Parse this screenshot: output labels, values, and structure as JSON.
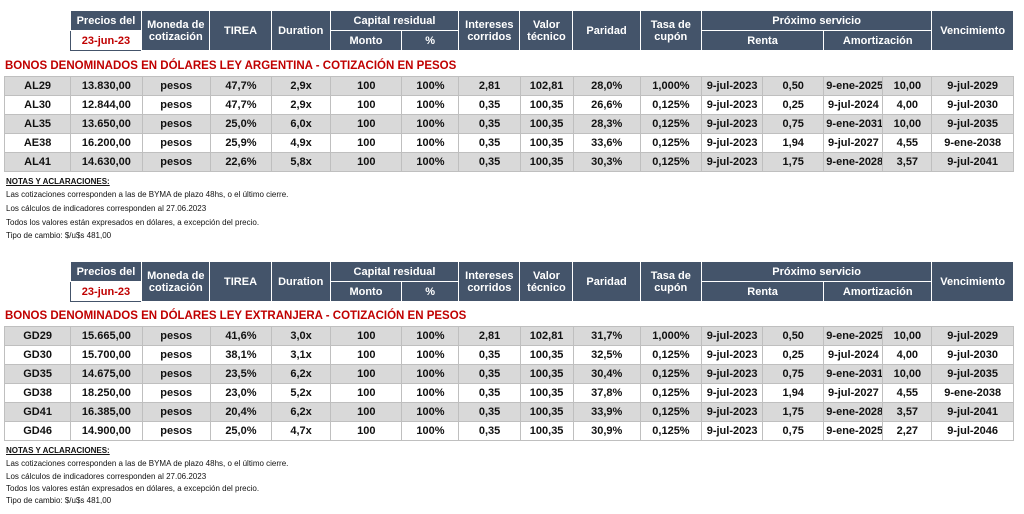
{
  "headers": {
    "precios_del": "Precios del",
    "date": "23-jun-23",
    "moneda_line1": "Moneda de",
    "moneda_line2": "cotización",
    "tirea": "TIREA",
    "duration": "Duration",
    "capital_residual": "Capital residual",
    "monto": "Monto",
    "pct": "%",
    "intereses_line1": "Intereses",
    "intereses_line2": "corridos",
    "valor_line1": "Valor",
    "valor_line2": "técnico",
    "paridad": "Paridad",
    "tasa_line1": "Tasa de",
    "tasa_line2": "cupón",
    "proximo_servicio": "Próximo servicio",
    "renta": "Renta",
    "amortizacion": "Amortización",
    "vencimiento": "Vencimiento"
  },
  "sections": [
    {
      "title": "BONOS DENOMINADOS EN DÓLARES LEY ARGENTINA    -    COTIZACIÓN EN PESOS",
      "rows": [
        [
          "AL29",
          "13.830,00",
          "pesos",
          "47,7%",
          "2,9x",
          "100",
          "100%",
          "2,81",
          "102,81",
          "28,0%",
          "1,000%",
          "9-jul-2023",
          "0,50",
          "9-ene-2025",
          "10,00",
          "9-jul-2029"
        ],
        [
          "AL30",
          "12.844,00",
          "pesos",
          "47,7%",
          "2,9x",
          "100",
          "100%",
          "0,35",
          "100,35",
          "26,6%",
          "0,125%",
          "9-jul-2023",
          "0,25",
          "9-jul-2024",
          "4,00",
          "9-jul-2030"
        ],
        [
          "AL35",
          "13.650,00",
          "pesos",
          "25,0%",
          "6,0x",
          "100",
          "100%",
          "0,35",
          "100,35",
          "28,3%",
          "0,125%",
          "9-jul-2023",
          "0,75",
          "9-ene-2031",
          "10,00",
          "9-jul-2035"
        ],
        [
          "AE38",
          "16.200,00",
          "pesos",
          "25,9%",
          "4,9x",
          "100",
          "100%",
          "0,35",
          "100,35",
          "33,6%",
          "0,125%",
          "9-jul-2023",
          "1,94",
          "9-jul-2027",
          "4,55",
          "9-ene-2038"
        ],
        [
          "AL41",
          "14.630,00",
          "pesos",
          "22,6%",
          "5,8x",
          "100",
          "100%",
          "0,35",
          "100,35",
          "30,3%",
          "0,125%",
          "9-jul-2023",
          "1,75",
          "9-ene-2028",
          "3,57",
          "9-jul-2041"
        ]
      ],
      "notes": {
        "title": "NOTAS Y ACLARACIONES:",
        "lines": [
          "Las cotizaciones corresponden a las de BYMA de plazo 48hs, o el último cierre.",
          "Los cálculos de indicadores corresponden al 27.06.2023",
          "Todos los valores están expresados en dólares, a excepción del precio.",
          "Tipo de cambio:  $/u$s 481,00"
        ]
      }
    },
    {
      "title": "BONOS DENOMINADOS EN DÓLARES LEY EXTRANJERA    -    COTIZACIÓN EN PESOS",
      "rows": [
        [
          "GD29",
          "15.665,00",
          "pesos",
          "41,6%",
          "3,0x",
          "100",
          "100%",
          "2,81",
          "102,81",
          "31,7%",
          "1,000%",
          "9-jul-2023",
          "0,50",
          "9-ene-2025",
          "10,00",
          "9-jul-2029"
        ],
        [
          "GD30",
          "15.700,00",
          "pesos",
          "38,1%",
          "3,1x",
          "100",
          "100%",
          "0,35",
          "100,35",
          "32,5%",
          "0,125%",
          "9-jul-2023",
          "0,25",
          "9-jul-2024",
          "4,00",
          "9-jul-2030"
        ],
        [
          "GD35",
          "14.675,00",
          "pesos",
          "23,5%",
          "6,2x",
          "100",
          "100%",
          "0,35",
          "100,35",
          "30,4%",
          "0,125%",
          "9-jul-2023",
          "0,75",
          "9-ene-2031",
          "10,00",
          "9-jul-2035"
        ],
        [
          "GD38",
          "18.250,00",
          "pesos",
          "23,0%",
          "5,2x",
          "100",
          "100%",
          "0,35",
          "100,35",
          "37,8%",
          "0,125%",
          "9-jul-2023",
          "1,94",
          "9-jul-2027",
          "4,55",
          "9-ene-2038"
        ],
        [
          "GD41",
          "16.385,00",
          "pesos",
          "20,4%",
          "6,2x",
          "100",
          "100%",
          "0,35",
          "100,35",
          "33,9%",
          "0,125%",
          "9-jul-2023",
          "1,75",
          "9-ene-2028",
          "3,57",
          "9-jul-2041"
        ],
        [
          "GD46",
          "14.900,00",
          "pesos",
          "25,0%",
          "4,7x",
          "100",
          "100%",
          "0,35",
          "100,35",
          "30,9%",
          "0,125%",
          "9-jul-2023",
          "0,75",
          "9-ene-2025",
          "2,27",
          "9-jul-2046"
        ]
      ],
      "notes": {
        "title": "NOTAS Y ACLARACIONES:",
        "lines": [
          "Las cotizaciones corresponden a las de BYMA de plazo 48hs, o el último cierre.",
          "Los cálculos de indicadores corresponden al 27.06.2023",
          "Todos los valores están expresados en dólares, a excepción del precio.",
          "Tipo de cambio:  $/u$s 481,00"
        ]
      }
    }
  ]
}
